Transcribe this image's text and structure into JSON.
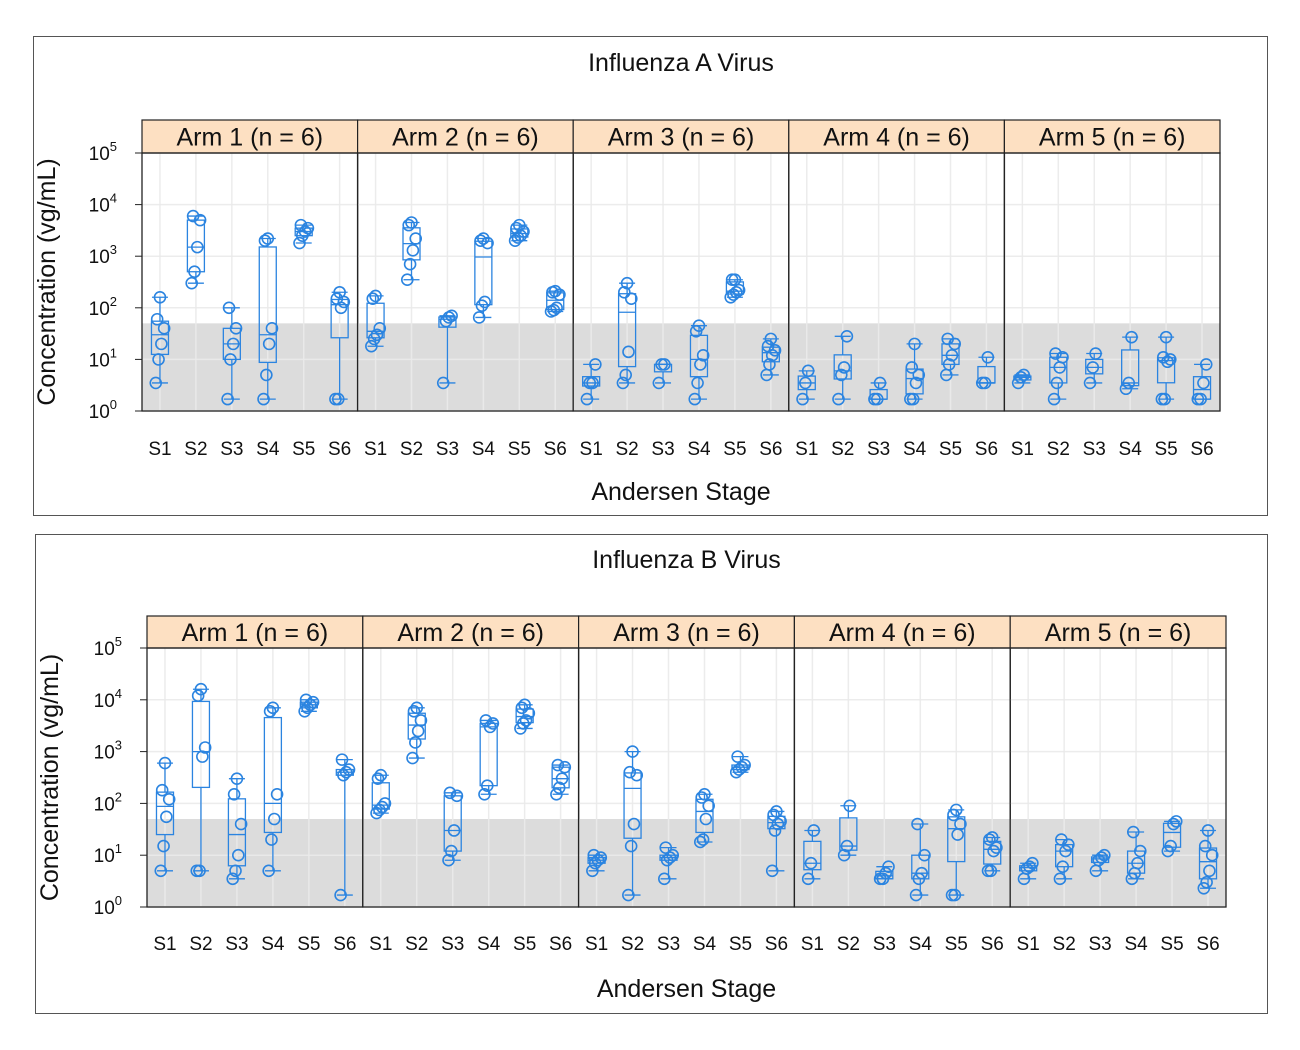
{
  "colors": {
    "strip": "#fde0c2",
    "marker": "#2b84e0",
    "shade": "#dcdcdc",
    "grid": "#eaeaea",
    "frame": "#222222"
  },
  "chart_data": [
    {
      "type": "box",
      "title": "Influenza A Virus",
      "xlabel": "Andersen Stage",
      "ylabel": "Concentration (vg/mL)",
      "y_scale": "log10",
      "ylim": [
        1,
        100000
      ],
      "y_ticks": [
        {
          "base": "10",
          "exp": "0"
        },
        {
          "base": "10",
          "exp": "1"
        },
        {
          "base": "10",
          "exp": "2"
        },
        {
          "base": "10",
          "exp": "3"
        },
        {
          "base": "10",
          "exp": "4"
        },
        {
          "base": "10",
          "exp": "5"
        }
      ],
      "shaded_below": 50,
      "categories": [
        "S1",
        "S2",
        "S3",
        "S4",
        "S5",
        "S6"
      ],
      "grid": true,
      "panels": [
        {
          "label": "Arm 1 (n = 6)",
          "groups": [
            {
              "stage": "S1",
              "points": [
                3.5,
                10,
                20,
                40,
                60,
                160
              ]
            },
            {
              "stage": "S2",
              "points": [
                300,
                500,
                1500,
                5000,
                6000
              ]
            },
            {
              "stage": "S3",
              "points": [
                1.7,
                10,
                20,
                40,
                100
              ]
            },
            {
              "stage": "S4",
              "points": [
                1.7,
                5,
                20,
                40,
                2000,
                2200
              ]
            },
            {
              "stage": "S5",
              "points": [
                1800,
                2500,
                3000,
                3500,
                4000
              ]
            },
            {
              "stage": "S6",
              "points": [
                1.7,
                1.7,
                100,
                130,
                150,
                200
              ]
            }
          ]
        },
        {
          "label": "Arm 2 (n = 6)",
          "groups": [
            {
              "stage": "S1",
              "points": [
                18,
                25,
                30,
                40,
                150,
                170
              ]
            },
            {
              "stage": "S2",
              "points": [
                350,
                700,
                1300,
                2200,
                4000,
                4500
              ]
            },
            {
              "stage": "S3",
              "points": [
                3.5,
                55,
                65,
                70
              ]
            },
            {
              "stage": "S4",
              "points": [
                65,
                110,
                130,
                1800,
                2000,
                2200
              ]
            },
            {
              "stage": "S5",
              "points": [
                2000,
                2300,
                2500,
                3000,
                3500,
                4000
              ]
            },
            {
              "stage": "S6",
              "points": [
                85,
                90,
                100,
                180,
                200,
                210
              ]
            }
          ]
        },
        {
          "label": "Arm 3 (n = 6)",
          "groups": [
            {
              "stage": "S1",
              "points": [
                1.7,
                3.5,
                3.5,
                8
              ]
            },
            {
              "stage": "S2",
              "points": [
                3.5,
                5,
                14,
                150,
                200,
                300
              ]
            },
            {
              "stage": "S3",
              "points": [
                3.5,
                8,
                8
              ]
            },
            {
              "stage": "S4",
              "points": [
                1.7,
                3.5,
                8,
                12,
                35,
                45
              ]
            },
            {
              "stage": "S5",
              "points": [
                160,
                180,
                200,
                220,
                350,
                350
              ]
            },
            {
              "stage": "S6",
              "points": [
                5,
                8,
                12,
                15,
                18,
                25
              ]
            }
          ]
        },
        {
          "label": "Arm 4 (n = 6)",
          "groups": [
            {
              "stage": "S1",
              "points": [
                1.7,
                3.5,
                6
              ]
            },
            {
              "stage": "S2",
              "points": [
                1.7,
                5,
                7,
                28
              ]
            },
            {
              "stage": "S3",
              "points": [
                1.7,
                1.7,
                3.5
              ]
            },
            {
              "stage": "S4",
              "points": [
                1.7,
                1.7,
                3.5,
                5,
                7,
                20
              ]
            },
            {
              "stage": "S5",
              "points": [
                5,
                8,
                12,
                20,
                25
              ]
            },
            {
              "stage": "S6",
              "points": [
                3.5,
                3.5,
                11
              ]
            }
          ]
        },
        {
          "label": "Arm 5 (n = 6)",
          "groups": [
            {
              "stage": "S1",
              "points": [
                3.5,
                4.5,
                5
              ]
            },
            {
              "stage": "S2",
              "points": [
                1.7,
                3.5,
                7,
                11,
                13
              ]
            },
            {
              "stage": "S3",
              "points": [
                3.5,
                7,
                13
              ]
            },
            {
              "stage": "S4",
              "points": [
                2.7,
                3.5,
                27
              ]
            },
            {
              "stage": "S5",
              "points": [
                1.7,
                1.7,
                9,
                10,
                11,
                27
              ]
            },
            {
              "stage": "S6",
              "points": [
                1.7,
                1.7,
                3.5,
                8
              ]
            }
          ]
        }
      ]
    },
    {
      "type": "box",
      "title": "Influenza B Virus",
      "xlabel": "Andersen Stage",
      "ylabel": "Concentration (vg/mL)",
      "y_scale": "log10",
      "ylim": [
        1,
        100000
      ],
      "y_ticks": [
        {
          "base": "10",
          "exp": "0"
        },
        {
          "base": "10",
          "exp": "1"
        },
        {
          "base": "10",
          "exp": "2"
        },
        {
          "base": "10",
          "exp": "3"
        },
        {
          "base": "10",
          "exp": "4"
        },
        {
          "base": "10",
          "exp": "5"
        }
      ],
      "shaded_below": 50,
      "categories": [
        "S1",
        "S2",
        "S3",
        "S4",
        "S5",
        "S6"
      ],
      "grid": true,
      "panels": [
        {
          "label": "Arm 1 (n = 6)",
          "groups": [
            {
              "stage": "S1",
              "points": [
                5,
                15,
                55,
                120,
                180,
                600
              ]
            },
            {
              "stage": "S2",
              "points": [
                5,
                5,
                800,
                1200,
                12000,
                16000
              ]
            },
            {
              "stage": "S3",
              "points": [
                3.5,
                5,
                10,
                40,
                150,
                300
              ]
            },
            {
              "stage": "S4",
              "points": [
                5,
                20,
                50,
                150,
                6000,
                7000
              ]
            },
            {
              "stage": "S5",
              "points": [
                6000,
                7000,
                8000,
                9000,
                10000
              ]
            },
            {
              "stage": "S6",
              "points": [
                1.7,
                350,
                400,
                450,
                700
              ]
            }
          ]
        },
        {
          "label": "Arm 2 (n = 6)",
          "groups": [
            {
              "stage": "S1",
              "points": [
                65,
                75,
                85,
                100,
                300,
                350
              ]
            },
            {
              "stage": "S2",
              "points": [
                750,
                1500,
                2500,
                4000,
                6000,
                7000
              ]
            },
            {
              "stage": "S3",
              "points": [
                8,
                12,
                30,
                140,
                160
              ]
            },
            {
              "stage": "S4",
              "points": [
                150,
                220,
                3000,
                3500,
                4000
              ]
            },
            {
              "stage": "S5",
              "points": [
                2800,
                3500,
                4000,
                5500,
                7000,
                8000
              ]
            },
            {
              "stage": "S6",
              "points": [
                150,
                200,
                300,
                500,
                550
              ]
            }
          ]
        },
        {
          "label": "Arm 3 (n = 6)",
          "groups": [
            {
              "stage": "S1",
              "points": [
                5,
                7,
                8,
                9,
                10
              ]
            },
            {
              "stage": "S2",
              "points": [
                1.7,
                15,
                40,
                350,
                400,
                1000
              ]
            },
            {
              "stage": "S3",
              "points": [
                3.5,
                8,
                9,
                10,
                14
              ]
            },
            {
              "stage": "S4",
              "points": [
                18,
                20,
                50,
                90,
                130,
                150
              ]
            },
            {
              "stage": "S5",
              "points": [
                400,
                450,
                500,
                550,
                800
              ]
            },
            {
              "stage": "S6",
              "points": [
                5,
                30,
                40,
                45,
                60,
                70
              ]
            }
          ]
        },
        {
          "label": "Arm 4 (n = 6)",
          "groups": [
            {
              "stage": "S1",
              "points": [
                3.5,
                7,
                30
              ]
            },
            {
              "stage": "S2",
              "points": [
                10,
                15,
                90
              ]
            },
            {
              "stage": "S3",
              "points": [
                3.5,
                3.5,
                4.5,
                6
              ]
            },
            {
              "stage": "S4",
              "points": [
                1.7,
                3.5,
                4.5,
                10,
                40
              ]
            },
            {
              "stage": "S5",
              "points": [
                1.7,
                1.7,
                25,
                40,
                60,
                75
              ]
            },
            {
              "stage": "S6",
              "points": [
                5,
                5,
                12,
                14,
                20,
                22
              ]
            }
          ]
        },
        {
          "label": "Arm 5 (n = 6)",
          "groups": [
            {
              "stage": "S1",
              "points": [
                3.5,
                5.5,
                6,
                7
              ]
            },
            {
              "stage": "S2",
              "points": [
                3.5,
                6,
                12,
                16,
                20
              ]
            },
            {
              "stage": "S3",
              "points": [
                5,
                8,
                9,
                10
              ]
            },
            {
              "stage": "S4",
              "points": [
                3.5,
                4.5,
                7,
                12,
                28
              ]
            },
            {
              "stage": "S5",
              "points": [
                12,
                15,
                40,
                45
              ]
            },
            {
              "stage": "S6",
              "points": [
                2.3,
                3,
                5,
                10,
                15,
                30
              ]
            }
          ]
        }
      ]
    }
  ]
}
